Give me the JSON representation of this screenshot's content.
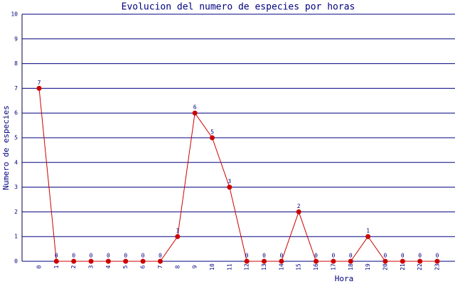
{
  "chart_data": {
    "type": "line",
    "title": "Evolucion del numero de especies por horas",
    "x_label": "Hora",
    "y_label": "Numero de especies",
    "categories": [
      "0",
      "1",
      "2",
      "3",
      "4",
      "5",
      "6",
      "7",
      "8",
      "9",
      "10",
      "11",
      "12",
      "13",
      "14",
      "15",
      "16",
      "17",
      "18",
      "19",
      "20",
      "21",
      "22",
      "23"
    ],
    "values": [
      7,
      0,
      0,
      0,
      0,
      0,
      0,
      0,
      1,
      6,
      5,
      3,
      0,
      0,
      0,
      2,
      0,
      0,
      0,
      1,
      0,
      0,
      0,
      0
    ],
    "color": "#cc0000",
    "ylim": [
      0,
      10
    ],
    "yticks": [
      0,
      1,
      2,
      3,
      4,
      5,
      6,
      7,
      8,
      9,
      10
    ],
    "grid": true
  }
}
